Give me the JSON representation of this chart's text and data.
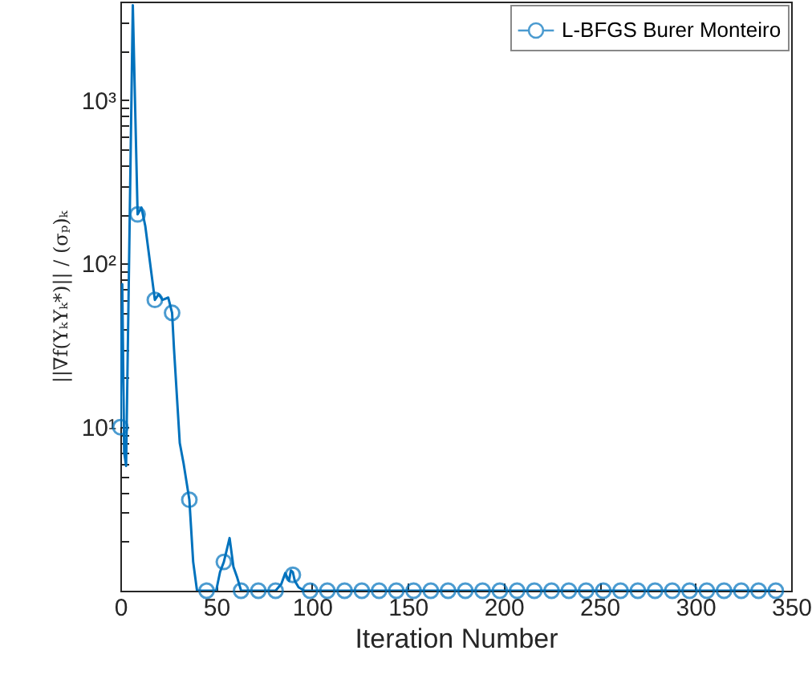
{
  "chart_data": {
    "type": "line",
    "xlabel": "Iteration Number",
    "ylabel": "||∇f(YₖYₖ*)|| / (σₚ)ₖ",
    "log": "y",
    "xlim": [
      0,
      350
    ],
    "xticks": [
      0,
      50,
      100,
      150,
      200,
      250,
      300,
      350
    ],
    "ylim": [
      1,
      4000
    ],
    "yticks": [
      {
        "value": 2,
        "label": null
      },
      {
        "value": 3,
        "label": null
      },
      {
        "value": 4,
        "label": null
      },
      {
        "value": 5,
        "label": null
      },
      {
        "value": 6,
        "label": null
      },
      {
        "value": 7,
        "label": null
      },
      {
        "value": 8,
        "label": null
      },
      {
        "value": 9,
        "label": null
      },
      {
        "value": 10,
        "label": "10¹"
      },
      {
        "value": 20,
        "label": null
      },
      {
        "value": 30,
        "label": null
      },
      {
        "value": 40,
        "label": null
      },
      {
        "value": 50,
        "label": null
      },
      {
        "value": 60,
        "label": null
      },
      {
        "value": 70,
        "label": null
      },
      {
        "value": 80,
        "label": null
      },
      {
        "value": 90,
        "label": null
      },
      {
        "value": 100,
        "label": "10²"
      },
      {
        "value": 200,
        "label": null
      },
      {
        "value": 300,
        "label": null
      },
      {
        "value": 400,
        "label": null
      },
      {
        "value": 500,
        "label": null
      },
      {
        "value": 600,
        "label": null
      },
      {
        "value": 700,
        "label": null
      },
      {
        "value": 800,
        "label": null
      },
      {
        "value": 900,
        "label": null
      },
      {
        "value": 1000,
        "label": "10³"
      },
      {
        "value": 2000,
        "label": null
      },
      {
        "value": 3000,
        "label": null
      },
      {
        "value": 4000,
        "label": null
      }
    ],
    "legend": "top right",
    "series": [
      {
        "marker": "none",
        "color": "#0072bd",
        "x": [
          0,
          1,
          2,
          3,
          6.5,
          9,
          11,
          13,
          18,
          20,
          22,
          25,
          27,
          28,
          31,
          33,
          36,
          38,
          40,
          45,
          50,
          52,
          54,
          57,
          59,
          61,
          63,
          72,
          81,
          84,
          86,
          88,
          89,
          90,
          91,
          93,
          96,
          99,
          342
        ],
        "values": [
          10,
          75,
          7,
          5.8,
          3800,
          200,
          220,
          170,
          60,
          65,
          60,
          62,
          50,
          30,
          8,
          6,
          3.6,
          1.5,
          1,
          1,
          1,
          1.3,
          1.5,
          2.1,
          1.4,
          1.2,
          1,
          1,
          1,
          1.1,
          1.28,
          1.15,
          1.33,
          1.3,
          1.15,
          1.05,
          1,
          1,
          1
        ]
      },
      {
        "type": "scatter",
        "marker": "circle",
        "name": "L-BFGS Burer Monteiro",
        "color": "#0072bd",
        "x": [
          0,
          9,
          18,
          27,
          36,
          45,
          54,
          63,
          72,
          81,
          90,
          99,
          108,
          117,
          126,
          135,
          144,
          153,
          162,
          171,
          180,
          189,
          198,
          207,
          216,
          225,
          234,
          243,
          252,
          261,
          270,
          279,
          288,
          297,
          306,
          315,
          324,
          333,
          342
        ],
        "values": [
          10,
          200,
          60,
          50,
          3.6,
          1,
          1.5,
          1,
          1,
          1,
          1.25,
          1,
          1,
          1,
          1,
          1,
          1,
          1,
          1,
          1,
          1,
          1,
          1,
          1,
          1,
          1,
          1,
          1,
          1,
          1,
          1,
          1,
          1,
          1,
          1,
          1,
          1,
          1,
          1
        ]
      }
    ]
  }
}
